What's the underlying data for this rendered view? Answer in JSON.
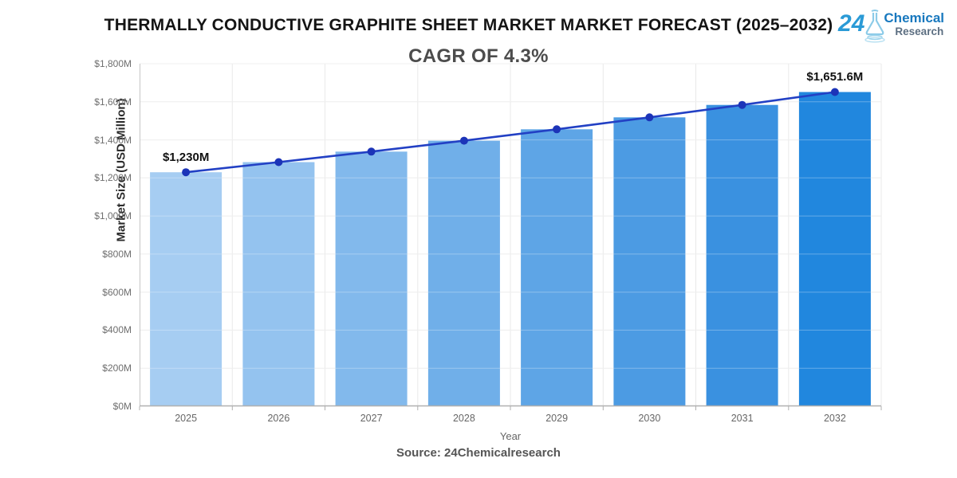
{
  "header": {
    "title": "THERMALLY CONDUCTIVE GRAPHITE SHEET MARKET MARKET FORECAST (2025–2032)",
    "logo": {
      "number": "24",
      "line1": "Chemical",
      "line2": "Research"
    }
  },
  "subtitle": "CAGR OF 4.3%",
  "footer": {
    "source": "Source: 24Chemicalresearch"
  },
  "chart_data": {
    "type": "bar",
    "overlay": "line",
    "title": "THERMALLY CONDUCTIVE GRAPHITE SHEET MARKET MARKET FORECAST (2025–2032)",
    "subtitle": "CAGR OF 4.3%",
    "categories": [
      "2025",
      "2026",
      "2027",
      "2028",
      "2029",
      "2030",
      "2031",
      "2032"
    ],
    "series": [
      {
        "name": "Market Size (bar)",
        "type": "bar",
        "values": [
          1230,
          1282.9,
          1338.1,
          1395.6,
          1455.6,
          1518.2,
          1583.5,
          1651.6
        ]
      },
      {
        "name": "Market Size (trend line)",
        "type": "line",
        "values": [
          1230,
          1282.9,
          1338.1,
          1395.6,
          1455.6,
          1518.2,
          1583.5,
          1651.6
        ]
      }
    ],
    "xlabel": "Year",
    "ylabel": "Market Size (USD Million)",
    "ylim": [
      0,
      1800
    ],
    "yticks": {
      "values": [
        0,
        200,
        400,
        600,
        800,
        1000,
        1200,
        1400,
        1600,
        1800
      ],
      "labels": [
        "$0M",
        "$200M",
        "$400M",
        "$600M",
        "$800M",
        "$1,000M",
        "$1,200M",
        "$1,400M",
        "$1,600M",
        "$1,800M"
      ]
    },
    "grid": true,
    "legend": "none",
    "annotations": [
      {
        "index": 0,
        "category": "2025",
        "text": "$1,230M"
      },
      {
        "index": 7,
        "category": "2032",
        "text": "$1,651.6M"
      }
    ],
    "colors": {
      "bars": [
        "#A6CDF2",
        "#94C3EF",
        "#82B9EC",
        "#70AFE9",
        "#5EA5E6",
        "#4C9BE3",
        "#3A91E0",
        "#2187DE"
      ],
      "line": "#2240C4",
      "marker": "#1C34B8",
      "grid": "#e9e9e9",
      "axis_y": "#c6c6c6",
      "axis_x": "#b0b0b0",
      "tick": "#b0b0b0"
    },
    "source": "Source: 24Chemicalresearch"
  }
}
